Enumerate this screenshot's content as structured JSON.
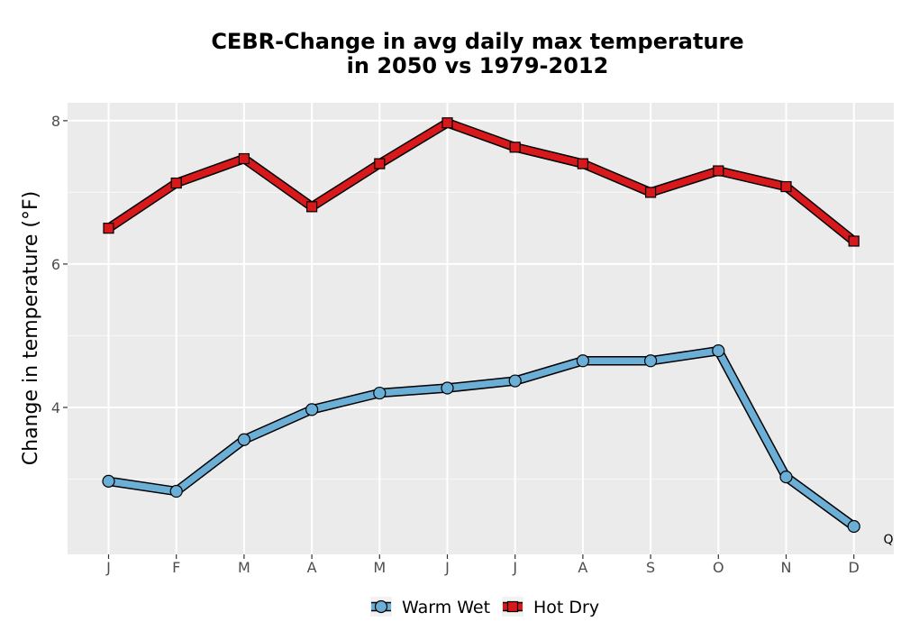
{
  "chart_data": {
    "type": "line",
    "title_lines": [
      "CEBR-Change in avg daily max temperature",
      "in 2050 vs 1979-2012"
    ],
    "xlabel": "",
    "ylabel": "Change in temperature (°F)",
    "categories": [
      "J",
      "F",
      "M",
      "A",
      "M",
      "J",
      "J",
      "A",
      "S",
      "O",
      "N",
      "D"
    ],
    "yticks": [
      4,
      6,
      8
    ],
    "ylim": [
      1.95,
      8.25
    ],
    "grid": true,
    "legend_position": "bottom",
    "series": [
      {
        "name": "Warm Wet",
        "marker": "circle",
        "color": "#6baed6",
        "values": [
          2.97,
          2.83,
          3.55,
          3.97,
          4.2,
          4.27,
          4.37,
          4.65,
          4.65,
          4.79,
          3.03,
          2.34
        ]
      },
      {
        "name": "Hot Dry",
        "marker": "square",
        "color": "#d7191c",
        "values": [
          6.5,
          7.13,
          7.47,
          6.8,
          7.4,
          7.97,
          7.63,
          7.4,
          7.0,
          7.3,
          7.08,
          6.32
        ]
      }
    ],
    "annotations": [
      {
        "text": "Q"
      }
    ]
  }
}
